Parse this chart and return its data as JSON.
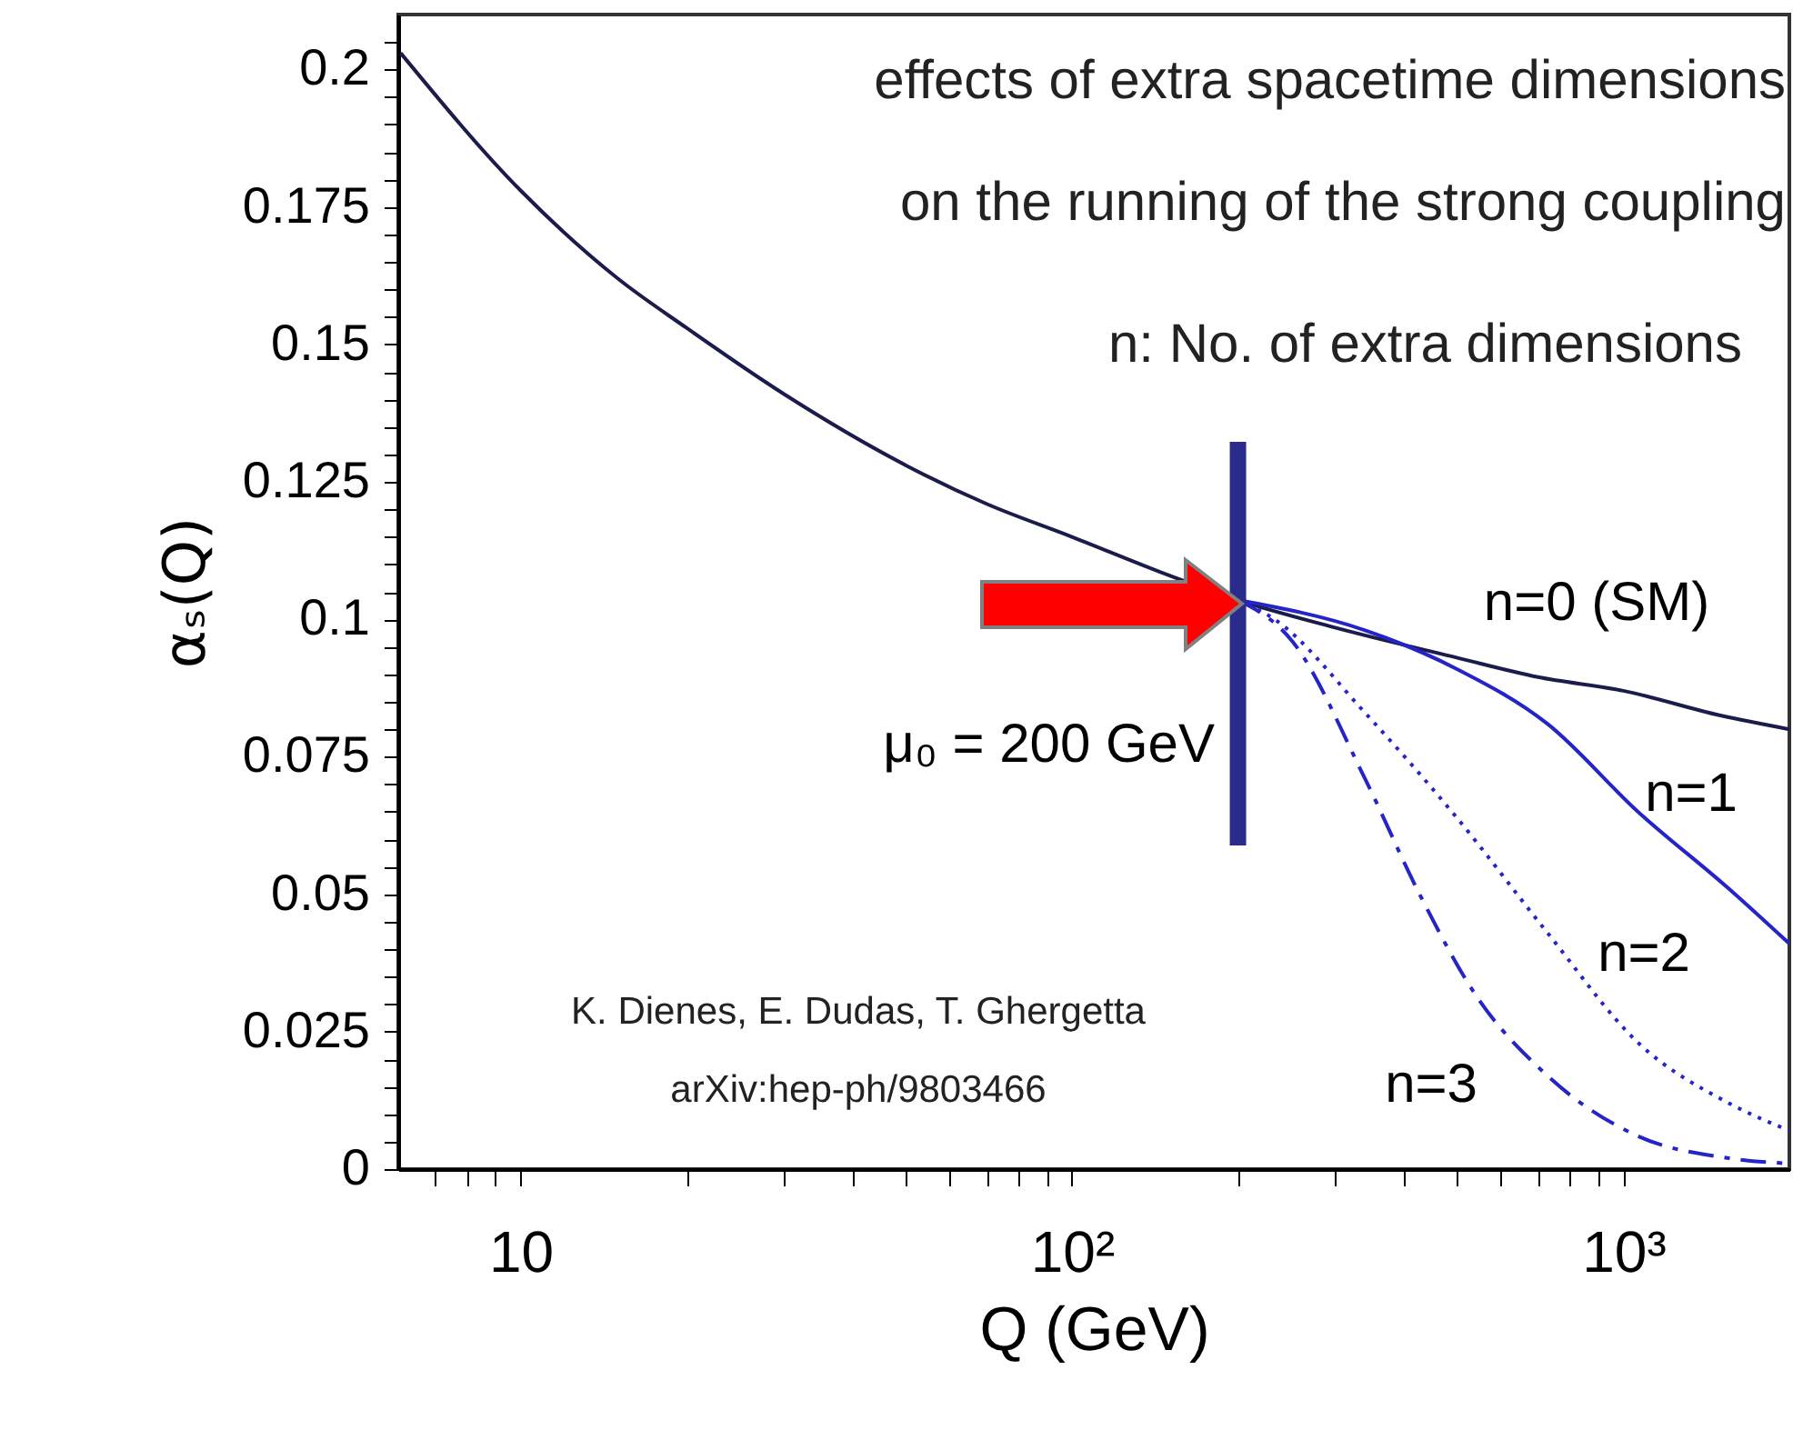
{
  "chart_data": {
    "type": "line",
    "xlabel": "Q (GeV)",
    "ylabel": "αₛ(Q)",
    "log": "x",
    "grid": false,
    "xlim": [
      6,
      2000
    ],
    "ylim": [
      0,
      0.21
    ],
    "xticks": [
      {
        "value": 7,
        "label": null
      },
      {
        "value": 8,
        "label": null
      },
      {
        "value": 9,
        "label": null
      },
      10,
      {
        "value": 20,
        "label": null
      },
      {
        "value": 30,
        "label": null
      },
      {
        "value": 40,
        "label": null
      },
      {
        "value": 50,
        "label": null
      },
      {
        "value": 60,
        "label": null
      },
      {
        "value": 70,
        "label": null
      },
      {
        "value": 80,
        "label": null
      },
      {
        "value": 90,
        "label": null
      },
      {
        "value": 100,
        "label": "10²"
      },
      {
        "value": 200,
        "label": null
      },
      {
        "value": 300,
        "label": null
      },
      {
        "value": 400,
        "label": null
      },
      {
        "value": 500,
        "label": null
      },
      {
        "value": 600,
        "label": null
      },
      {
        "value": 700,
        "label": null
      },
      {
        "value": 800,
        "label": null
      },
      {
        "value": 900,
        "label": null
      },
      {
        "value": 1000,
        "label": "10³"
      }
    ],
    "yticks": [
      0,
      {
        "value": 0.005,
        "label": null
      },
      {
        "value": 0.01,
        "label": null
      },
      {
        "value": 0.015,
        "label": null
      },
      {
        "value": 0.02,
        "label": null
      },
      0.025,
      {
        "value": 0.03,
        "label": null
      },
      {
        "value": 0.035,
        "label": null
      },
      {
        "value": 0.04,
        "label": null
      },
      {
        "value": 0.045,
        "label": null
      },
      0.05,
      {
        "value": 0.055,
        "label": null
      },
      {
        "value": 0.06,
        "label": null
      },
      {
        "value": 0.065,
        "label": null
      },
      {
        "value": 0.07,
        "label": null
      },
      0.075,
      {
        "value": 0.08,
        "label": null
      },
      {
        "value": 0.085,
        "label": null
      },
      {
        "value": 0.09,
        "label": null
      },
      {
        "value": 0.095,
        "label": null
      },
      0.1,
      {
        "value": 0.105,
        "label": null
      },
      {
        "value": 0.11,
        "label": null
      },
      {
        "value": 0.115,
        "label": null
      },
      {
        "value": 0.12,
        "label": null
      },
      0.125,
      {
        "value": 0.13,
        "label": null
      },
      {
        "value": 0.135,
        "label": null
      },
      {
        "value": 0.14,
        "label": null
      },
      {
        "value": 0.145,
        "label": null
      },
      0.15,
      {
        "value": 0.155,
        "label": null
      },
      {
        "value": 0.16,
        "label": null
      },
      {
        "value": 0.165,
        "label": null
      },
      {
        "value": 0.17,
        "label": null
      },
      0.175,
      {
        "value": 0.18,
        "label": null
      },
      {
        "value": 0.185,
        "label": null
      },
      {
        "value": 0.19,
        "label": null
      },
      {
        "value": 0.195,
        "label": null
      },
      0.2,
      {
        "value": 0.205,
        "label": null
      }
    ],
    "series": [
      {
        "name": "n=0 (SM)",
        "color": "#1c1c4c",
        "line_style": "solid",
        "x": [
          6.06,
          10,
          15,
          20,
          30,
          50,
          70,
          100,
          150,
          200,
          300,
          500,
          700,
          1000,
          1500,
          2000
        ],
        "values": [
          0.203,
          0.178,
          0.162,
          0.153,
          0.141,
          0.128,
          0.121,
          0.115,
          0.108,
          0.1035,
          0.0985,
          0.093,
          0.0895,
          0.087,
          0.0825,
          0.08
        ]
      },
      {
        "name": "n=1",
        "color": "#2424c8",
        "line_style": "solid",
        "x": [
          200,
          340,
          498,
          728,
          1063,
          1553,
          2000
        ],
        "values": [
          0.1035,
          0.098,
          0.091,
          0.081,
          0.065,
          0.051,
          0.041
        ]
      },
      {
        "name": "n=2",
        "color": "#2424c8",
        "line_style": "dotted",
        "x": [
          200,
          233,
          340,
          498,
          728,
          1063,
          1553,
          2000
        ],
        "values": [
          0.1035,
          0.1,
          0.083,
          0.064,
          0.043,
          0.023,
          0.012,
          0.007
        ]
      },
      {
        "name": "n=3",
        "color": "#2424c8",
        "line_style": "dashed",
        "x": [
          200,
          251,
          340,
          427,
          537,
          728,
          1063,
          1553,
          2000
        ],
        "values": [
          0.1035,
          0.096,
          0.071,
          0.05,
          0.032,
          0.017,
          0.006,
          0.002,
          0.001
        ]
      }
    ],
    "ref_lines": [
      {
        "axis": "x",
        "value": 200,
        "label": "μ₀ = 200 GeV",
        "color": "#2b2b8c"
      }
    ],
    "annotations": [
      "effects of extra spacetime dimensions",
      "on the running of the strong coupling",
      "n: No. of extra dimensions",
      "K. Dienes, E. Dudas, T. Ghergetta",
      "arXiv:hep-ph/9803466"
    ]
  }
}
